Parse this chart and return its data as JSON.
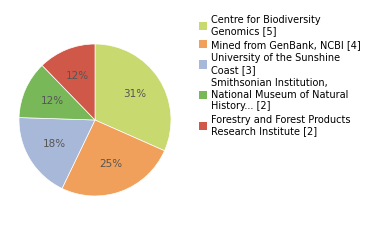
{
  "labels": [
    "Centre for Biodiversity\nGenomics [5]",
    "Mined from GenBank, NCBI [4]",
    "University of the Sunshine\nCoast [3]",
    "Smithsonian Institution,\nNational Museum of Natural\nHistory... [2]",
    "Forestry and Forest Products\nResearch Institute [2]"
  ],
  "values": [
    31,
    25,
    18,
    12,
    12
  ],
  "colors": [
    "#c8d96f",
    "#f0a05a",
    "#a8b8d8",
    "#78b858",
    "#d05848"
  ],
  "pct_labels": [
    "31%",
    "25%",
    "18%",
    "12%",
    "12%"
  ],
  "background_color": "#ffffff",
  "text_fontsize": 7.0,
  "pct_fontsize": 7.5,
  "pct_color": "#555555"
}
